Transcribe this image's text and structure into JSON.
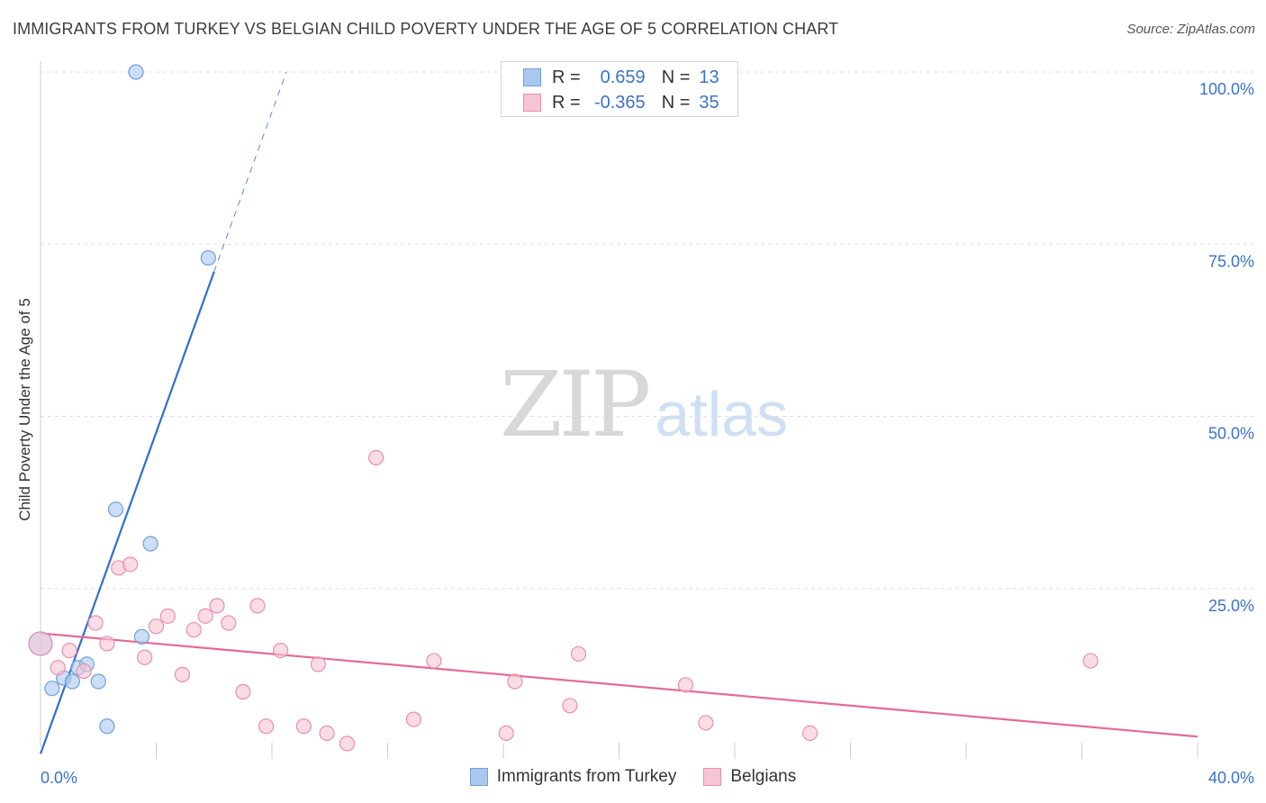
{
  "header": {
    "title": "IMMIGRANTS FROM TURKEY VS BELGIAN CHILD POVERTY UNDER THE AGE OF 5 CORRELATION CHART",
    "source": "Source: ZipAtlas.com"
  },
  "watermark": {
    "zip": "ZIP",
    "atlas": "atlas"
  },
  "legend": {
    "rows": [
      {
        "r_label": "R =",
        "r_value": "0.659",
        "n_label": "N =",
        "n_value": "13",
        "color": "#a9c8ef",
        "border": "#6f9fdb"
      },
      {
        "r_label": "R =",
        "r_value": "-0.365",
        "n_label": "N =",
        "n_value": "35",
        "color": "#f7c4d4",
        "border": "#e98fae"
      }
    ]
  },
  "bottom_legend": [
    {
      "label": "Immigrants from Turkey",
      "color": "#a9c8ef",
      "border": "#6f9fdb"
    },
    {
      "label": "Belgians",
      "color": "#f7c4d4",
      "border": "#e98fae"
    }
  ],
  "chart_data": {
    "type": "scatter",
    "title": "IMMIGRANTS FROM TURKEY VS BELGIAN CHILD POVERTY UNDER THE AGE OF 5 CORRELATION CHART",
    "xlabel": "",
    "ylabel": "Child Poverty Under the Age of 5",
    "xlim": [
      0,
      40
    ],
    "ylim": [
      0,
      100
    ],
    "x_tick_labels": [
      "0.0%",
      "40.0%"
    ],
    "y_ticks": [
      25,
      50,
      75,
      100
    ],
    "y_tick_labels": [
      "25.0%",
      "50.0%",
      "75.0%",
      "100.0%"
    ],
    "grid": true,
    "series": [
      {
        "name": "Immigrants from Turkey",
        "color": "#6f9fdb",
        "fill": "#a9c8ef",
        "line_color": "#2f6fd0",
        "points": [
          {
            "x": 0.0,
            "y": 17.0
          },
          {
            "x": 0.4,
            "y": 10.5
          },
          {
            "x": 0.8,
            "y": 12.0
          },
          {
            "x": 1.1,
            "y": 11.5
          },
          {
            "x": 1.3,
            "y": 13.5
          },
          {
            "x": 1.6,
            "y": 14.0
          },
          {
            "x": 2.0,
            "y": 11.5
          },
          {
            "x": 2.3,
            "y": 5.0
          },
          {
            "x": 2.6,
            "y": 36.5
          },
          {
            "x": 3.3,
            "y": 100.0
          },
          {
            "x": 3.5,
            "y": 18.0
          },
          {
            "x": 3.8,
            "y": 31.5
          },
          {
            "x": 5.8,
            "y": 73.0
          }
        ],
        "trend": {
          "x0": 0.0,
          "y0": 1.0,
          "x1": 6.0,
          "y1": 71.0,
          "ext_x1": 8.5,
          "ext_y1": 100.0
        }
      },
      {
        "name": "Belgians",
        "color": "#e98fae",
        "fill": "#f7c4d4",
        "line_color": "#e56a97",
        "points": [
          {
            "x": 0.0,
            "y": 17.0
          },
          {
            "x": 0.6,
            "y": 13.5
          },
          {
            "x": 1.0,
            "y": 16.0
          },
          {
            "x": 1.5,
            "y": 13.0
          },
          {
            "x": 1.9,
            "y": 20.0
          },
          {
            "x": 2.3,
            "y": 17.0
          },
          {
            "x": 2.7,
            "y": 28.0
          },
          {
            "x": 3.1,
            "y": 28.5
          },
          {
            "x": 3.6,
            "y": 15.0
          },
          {
            "x": 4.0,
            "y": 19.5
          },
          {
            "x": 4.4,
            "y": 21.0
          },
          {
            "x": 4.9,
            "y": 12.5
          },
          {
            "x": 5.3,
            "y": 19.0
          },
          {
            "x": 5.7,
            "y": 21.0
          },
          {
            "x": 6.1,
            "y": 22.5
          },
          {
            "x": 6.5,
            "y": 20.0
          },
          {
            "x": 7.0,
            "y": 10.0
          },
          {
            "x": 7.5,
            "y": 22.5
          },
          {
            "x": 7.8,
            "y": 5.0
          },
          {
            "x": 8.3,
            "y": 16.0
          },
          {
            "x": 9.1,
            "y": 5.0
          },
          {
            "x": 9.6,
            "y": 14.0
          },
          {
            "x": 9.9,
            "y": 4.0
          },
          {
            "x": 10.6,
            "y": 2.5
          },
          {
            "x": 11.6,
            "y": 44.0
          },
          {
            "x": 12.9,
            "y": 6.0
          },
          {
            "x": 13.6,
            "y": 14.5
          },
          {
            "x": 16.1,
            "y": 4.0
          },
          {
            "x": 16.4,
            "y": 11.5
          },
          {
            "x": 18.3,
            "y": 8.0
          },
          {
            "x": 18.6,
            "y": 15.5
          },
          {
            "x": 22.3,
            "y": 11.0
          },
          {
            "x": 23.0,
            "y": 5.5
          },
          {
            "x": 26.6,
            "y": 4.0
          },
          {
            "x": 36.3,
            "y": 14.5
          }
        ],
        "trend": {
          "x0": 0.0,
          "y0": 18.5,
          "x1": 40.0,
          "y1": 3.5
        }
      }
    ]
  }
}
